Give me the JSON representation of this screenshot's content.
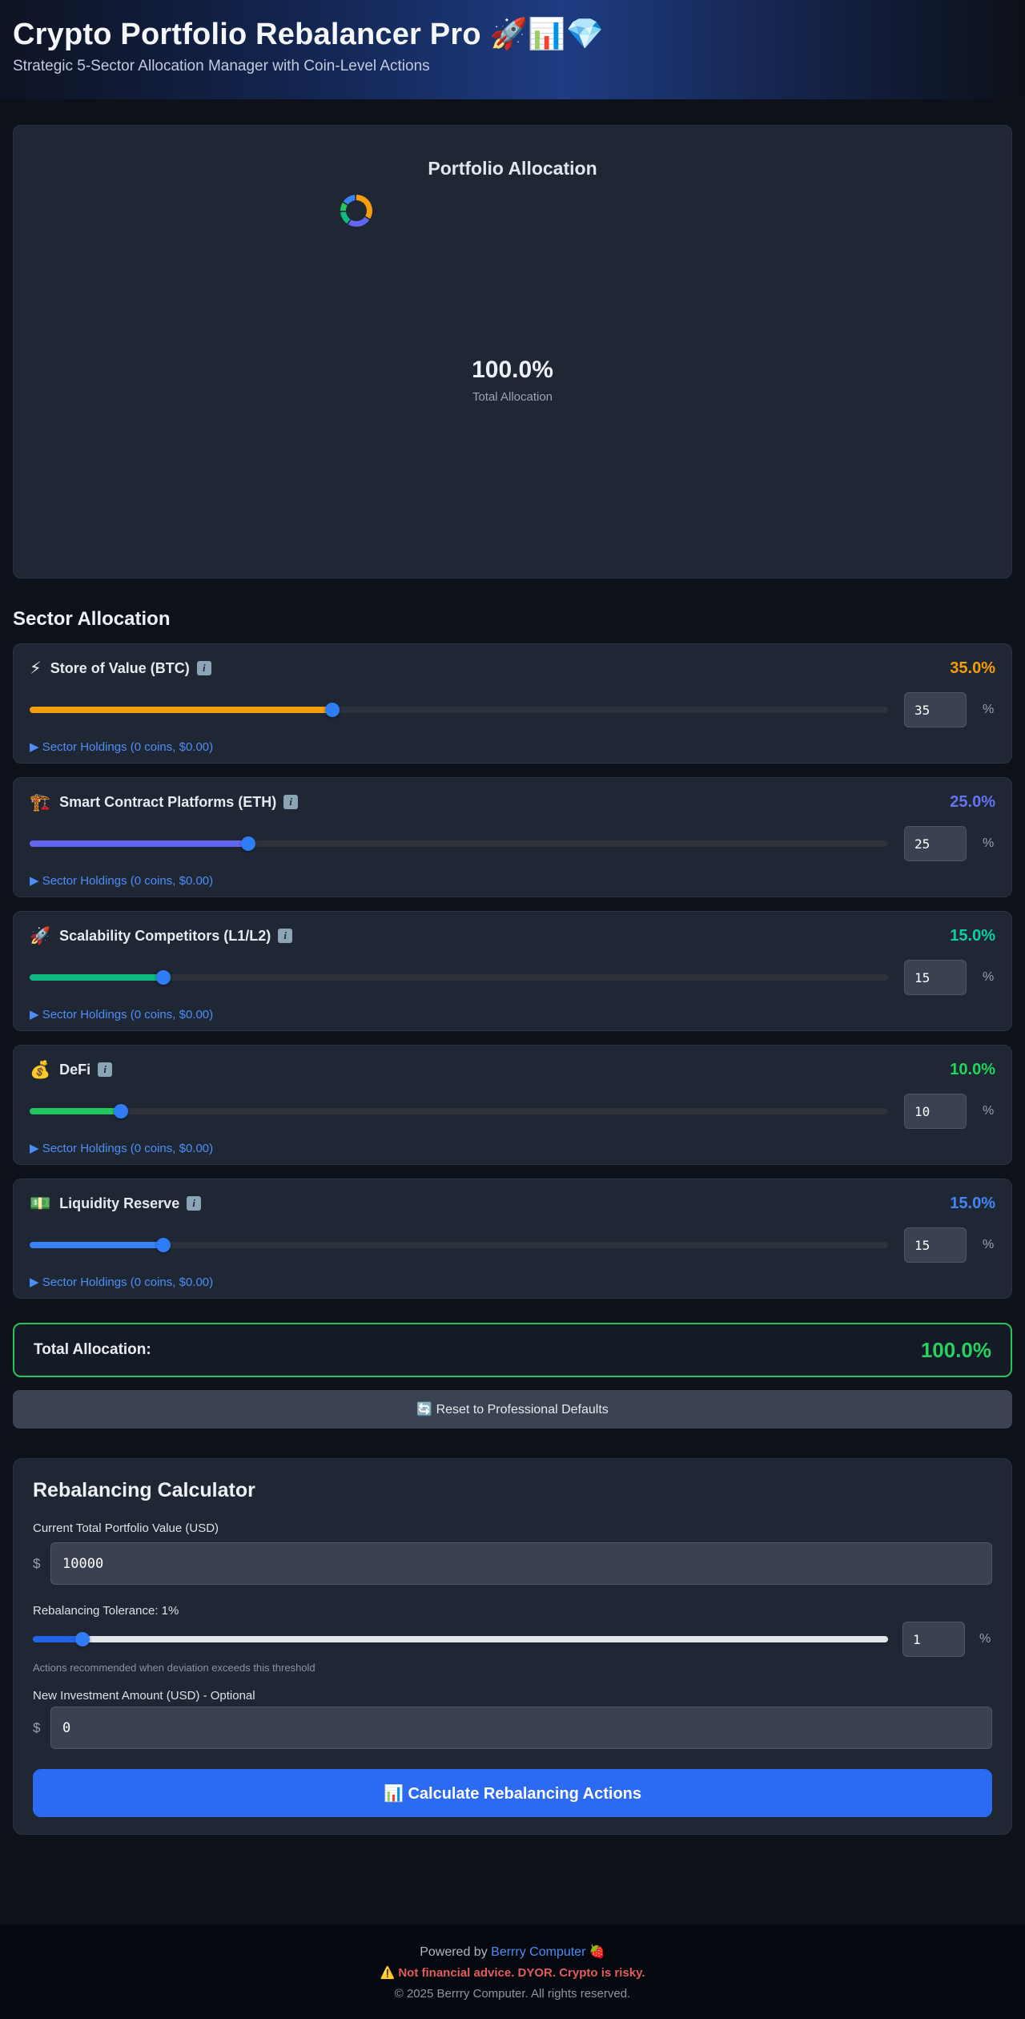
{
  "header": {
    "title": "Crypto Portfolio Rebalancer Pro 🚀📊💎",
    "subtitle": "Strategic 5-Sector Allocation Manager with Coin-Level Actions"
  },
  "portfolio": {
    "title": "Portfolio Allocation",
    "total_percent": "100.0%",
    "total_label": "Total Allocation",
    "chart": {
      "type": "pie",
      "labels": [
        "Store of Value (BTC)",
        "Smart Contract Platforms (ETH)",
        "Scalability Competitors (L1/L2)",
        "DeFi",
        "Liquidity Reserve"
      ],
      "values": [
        35,
        25,
        15,
        10,
        15
      ],
      "colors": [
        "#f59e0b",
        "#6366f1",
        "#10b981",
        "#22c55e",
        "#3b82f6"
      ]
    }
  },
  "sectors": {
    "heading": "Sector Allocation",
    "info_icon": "i",
    "percent_suffix": "%",
    "items": [
      {
        "emoji": "⚡",
        "name": "Store of Value (BTC)",
        "percent_label": "35.0%",
        "value": "35",
        "color": "#f59e0b",
        "slider": {
          "pct": 35,
          "color": "#f59e0b",
          "track": "#2e333b"
        },
        "holdings_label": "▶ Sector Holdings (0 coins, $0.00)"
      },
      {
        "emoji": "🏗️",
        "name": "Smart Contract Platforms (ETH)",
        "percent_label": "25.0%",
        "value": "25",
        "color": "#6673f1",
        "slider": {
          "pct": 25,
          "color": "#6366f1",
          "track": "#2e333b"
        },
        "holdings_label": "▶ Sector Holdings (0 coins, $0.00)"
      },
      {
        "emoji": "🚀",
        "name": "Scalability Competitors (L1/L2)",
        "percent_label": "15.0%",
        "value": "15",
        "color": "#10cf9e",
        "slider": {
          "pct": 15,
          "color": "#10b981",
          "track": "#2e333b"
        },
        "holdings_label": "▶ Sector Holdings (0 coins, $0.00)"
      },
      {
        "emoji": "💰",
        "name": "DeFi",
        "percent_label": "10.0%",
        "value": "10",
        "color": "#22d55e",
        "slider": {
          "pct": 10,
          "color": "#22c55e",
          "track": "#2e333b"
        },
        "holdings_label": "▶ Sector Holdings (0 coins, $0.00)"
      },
      {
        "emoji": "💵",
        "name": "Liquidity Reserve",
        "percent_label": "15.0%",
        "value": "15",
        "color": "#4285f4",
        "slider": {
          "pct": 15,
          "color": "#3b82f6",
          "track": "#2e333b"
        },
        "holdings_label": "▶ Sector Holdings (0 coins, $0.00)"
      }
    ]
  },
  "total_box": {
    "label": "Total Allocation:",
    "value": "100.0%",
    "border_color": "#22c55e"
  },
  "reset_button_label": "🔄 Reset to Professional Defaults",
  "calculator": {
    "title": "Rebalancing Calculator",
    "value_label": "Current Total Portfolio Value (USD)",
    "currency_prefix": "$",
    "portfolio_value": "10000",
    "tolerance_label": "Rebalancing Tolerance: 1%",
    "tolerance_value": "1",
    "percent_suffix": "%",
    "tolerance_slider": {
      "pct": 5,
      "color": "#2563eb",
      "track": "#e2e5ea"
    },
    "tolerance_help": "Actions recommended when deviation exceeds this threshold",
    "investment_label": "New Investment Amount (USD) - Optional",
    "investment_value": "0",
    "calculate_button_label": "📊 Calculate Rebalancing Actions",
    "button_color": "#2d6af2"
  },
  "footer": {
    "powered_prefix": "Powered by",
    "powered_link": "Berrry Computer",
    "powered_emoji": "🍓",
    "disclaimer": "⚠️ Not financial advice. DYOR. Crypto is risky.",
    "copyright": "© 2025 Berrry Computer. All rights reserved."
  }
}
